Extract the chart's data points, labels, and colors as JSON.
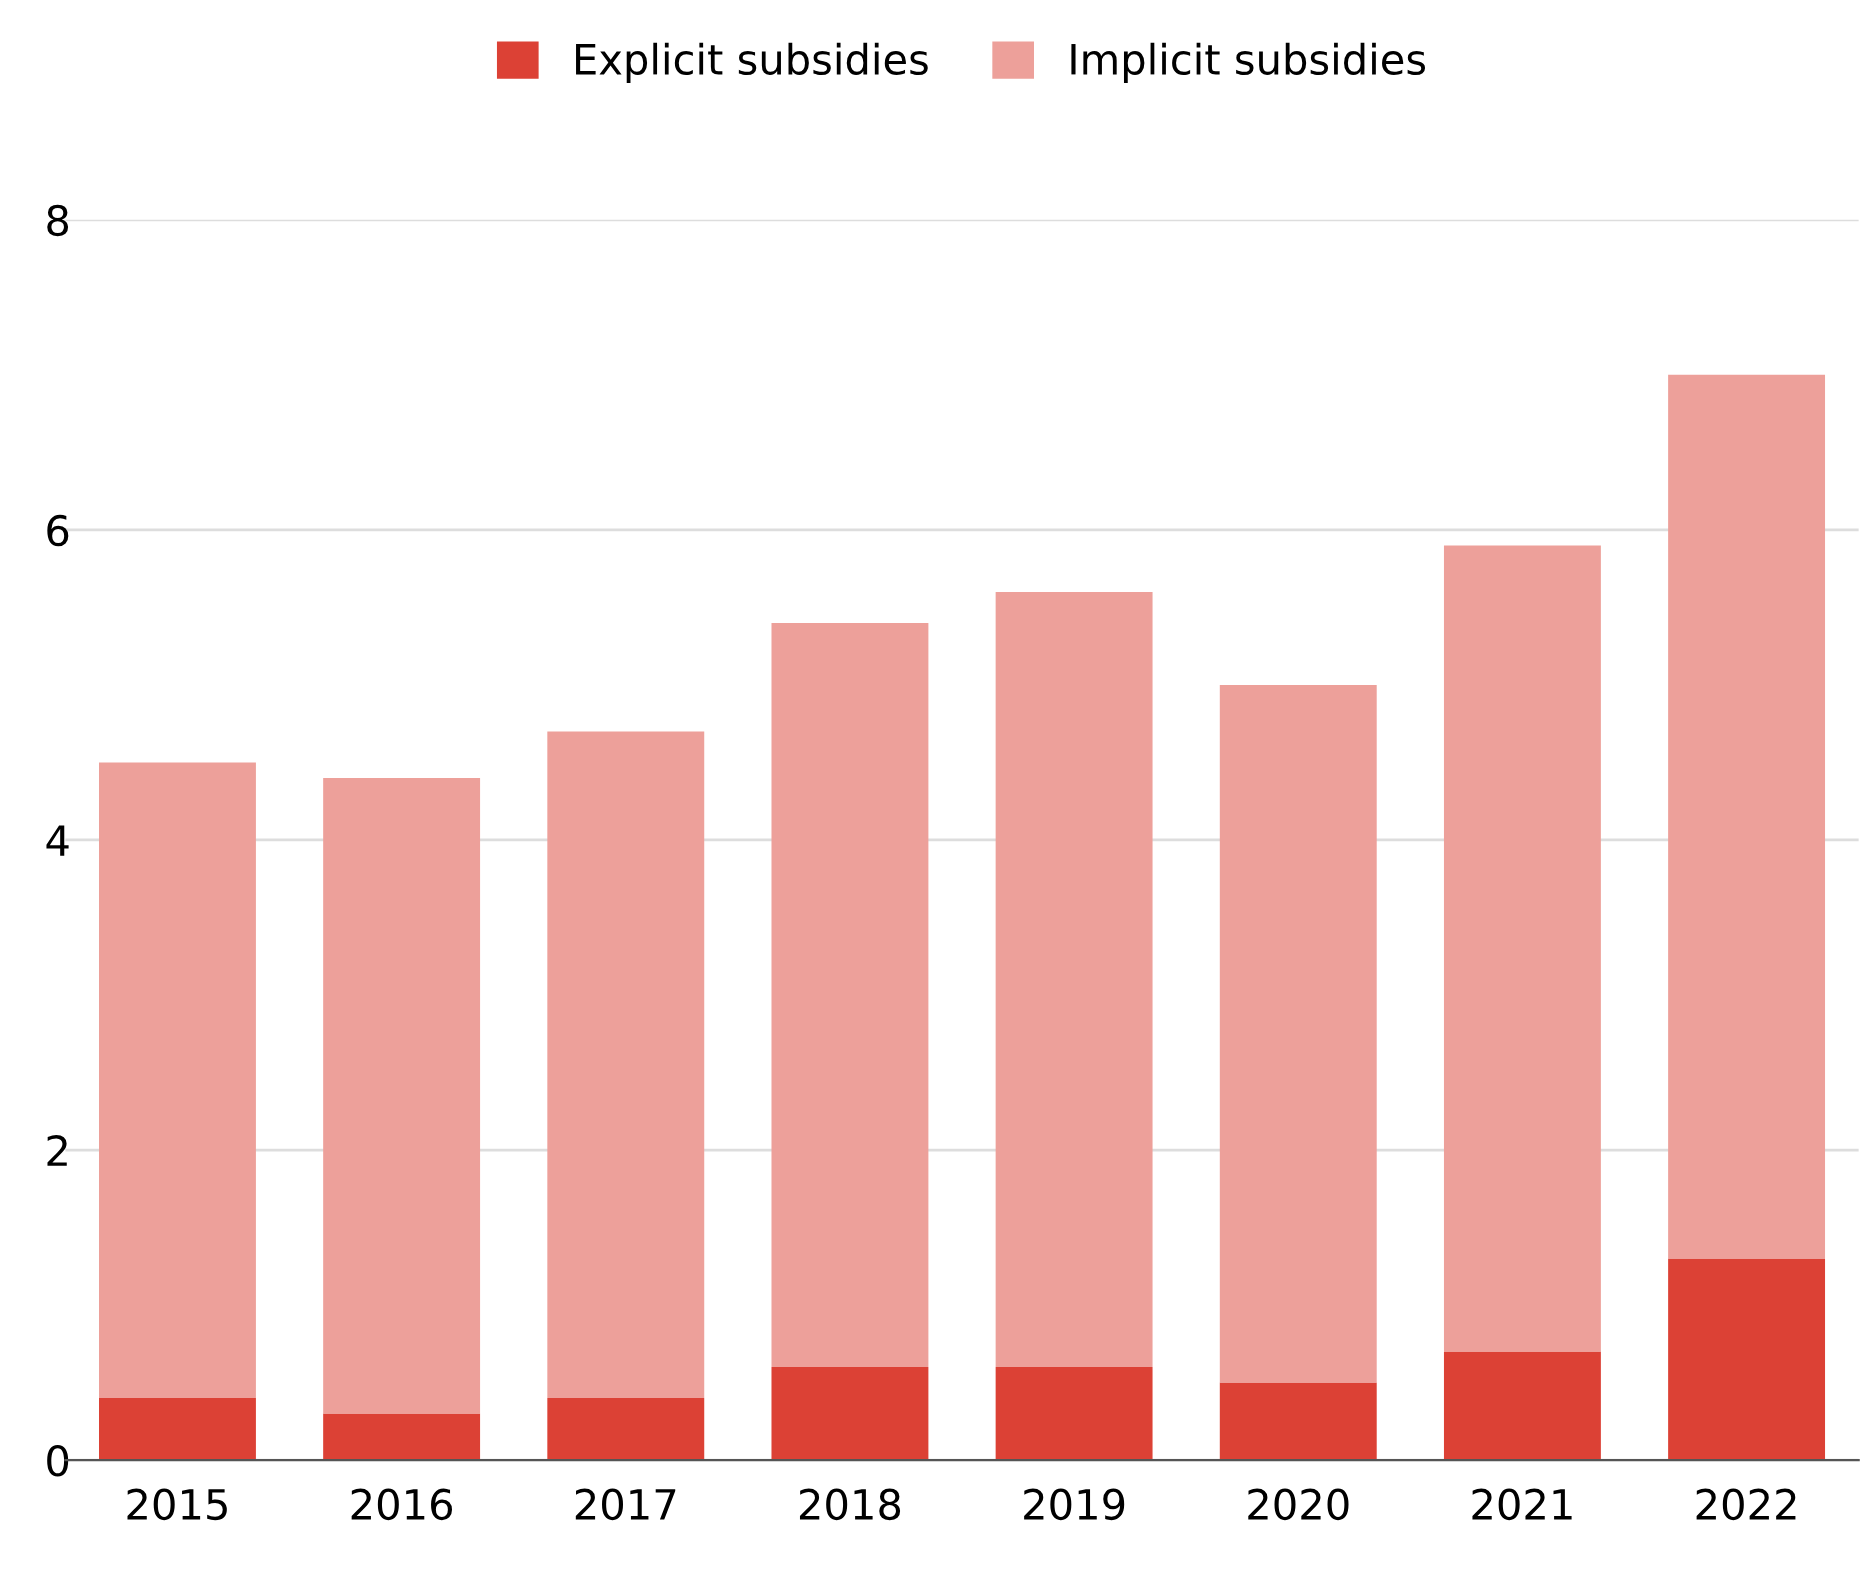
{
  "chart_data": {
    "type": "bar",
    "stacked": true,
    "categories": [
      "2015",
      "2016",
      "2017",
      "2018",
      "2019",
      "2020",
      "2021",
      "2022"
    ],
    "series": [
      {
        "name": "Explicit subsidies",
        "color": "#dc4135",
        "values": [
          0.4,
          0.3,
          0.4,
          0.6,
          0.6,
          0.5,
          0.7,
          1.3
        ]
      },
      {
        "name": "Implicit subsidies",
        "color": "#eda09a",
        "values": [
          4.1,
          4.1,
          4.3,
          4.8,
          5.0,
          4.5,
          5.2,
          5.7
        ]
      }
    ],
    "ylim": [
      0,
      8
    ],
    "yticks": [
      0,
      2,
      4,
      6,
      8
    ],
    "grid": "y",
    "legend": "top"
  }
}
